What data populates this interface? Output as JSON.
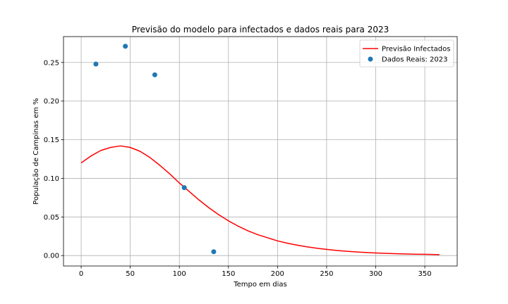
{
  "chart_data": {
    "type": "line",
    "title": "Previsão do modelo para infectados e dados reais para 2023",
    "xlabel": "Tempo em dias",
    "ylabel": "População de Campinas em %",
    "xlim": [
      -18,
      383
    ],
    "ylim": [
      -0.0135,
      0.2835
    ],
    "x_ticks": [
      0,
      50,
      100,
      150,
      200,
      250,
      300,
      350
    ],
    "y_ticks": [
      0.0,
      0.05,
      0.1,
      0.15,
      0.2,
      0.25
    ],
    "grid": true,
    "legend_position": "top-right",
    "series": [
      {
        "name": "Previsão Infectados",
        "kind": "line",
        "color": "#ff0000",
        "x": [
          0,
          10,
          20,
          30,
          40,
          50,
          60,
          70,
          80,
          90,
          100,
          110,
          120,
          130,
          140,
          150,
          160,
          170,
          180,
          190,
          200,
          210,
          220,
          230,
          240,
          250,
          260,
          270,
          280,
          290,
          300,
          310,
          320,
          330,
          340,
          350,
          365
        ],
        "y": [
          0.12,
          0.129,
          0.136,
          0.14,
          0.142,
          0.14,
          0.135,
          0.127,
          0.117,
          0.106,
          0.094,
          0.083,
          0.072,
          0.062,
          0.053,
          0.045,
          0.038,
          0.032,
          0.027,
          0.023,
          0.019,
          0.016,
          0.0135,
          0.0113,
          0.0095,
          0.008,
          0.0067,
          0.0056,
          0.0047,
          0.004,
          0.0034,
          0.0029,
          0.0025,
          0.0021,
          0.0018,
          0.0016,
          0.0012
        ]
      },
      {
        "name": "Dados Reais: 2023",
        "kind": "scatter",
        "color": "#1f77b4",
        "x": [
          15,
          45,
          75,
          105,
          135
        ],
        "y": [
          0.248,
          0.271,
          0.234,
          0.088,
          0.005
        ]
      }
    ]
  }
}
